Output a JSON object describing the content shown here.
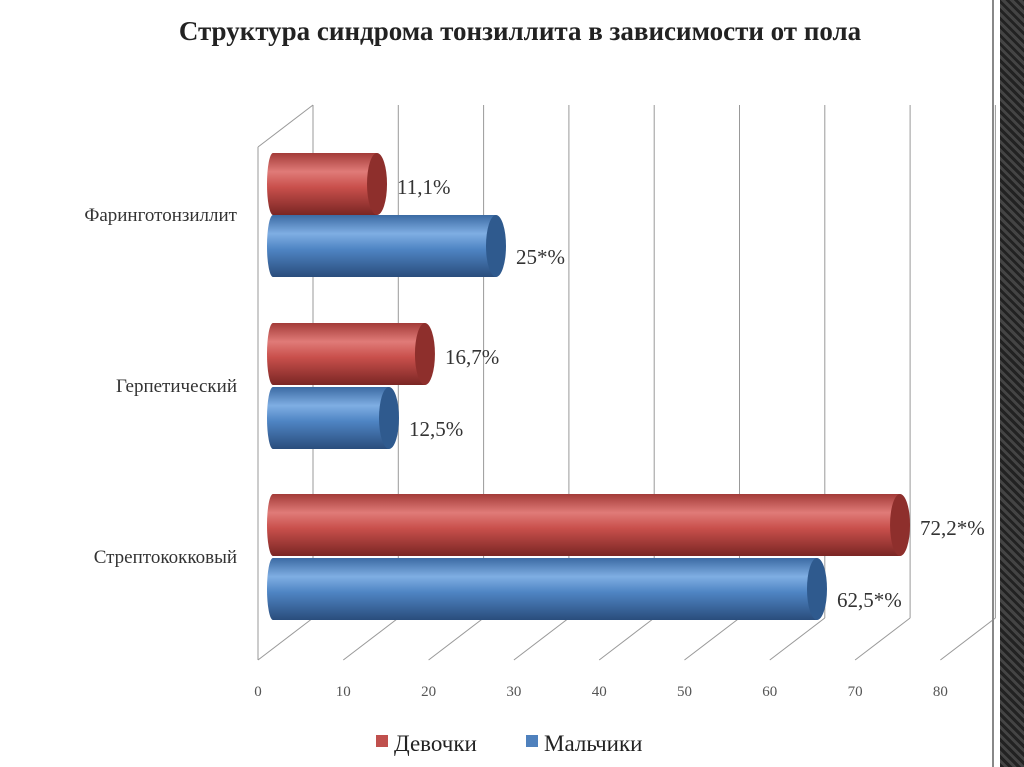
{
  "chart_data": {
    "type": "bar",
    "orientation": "horizontal",
    "title": "Структура синдрома тонзиллита в зависимости от пола",
    "categories": [
      "Фаринготонзиллит",
      "Герпетический",
      "Стрептококковый"
    ],
    "series": [
      {
        "name": "Девочки",
        "color": "#c0504d",
        "values": [
          11.1,
          16.7,
          72.2
        ],
        "labels": [
          "11,1%",
          "16,7%",
          "72,2*%"
        ]
      },
      {
        "name": "Мальчики",
        "color": "#4f81bd",
        "values": [
          25,
          12.5,
          62.5
        ],
        "labels": [
          "25*%",
          "12,5%",
          "62,5*%"
        ]
      }
    ],
    "xlim": [
      0,
      80
    ],
    "xticks": [
      "0",
      "10",
      "20",
      "30",
      "40",
      "50",
      "60",
      "70",
      "80"
    ],
    "grid": true,
    "legend": "bottom"
  }
}
